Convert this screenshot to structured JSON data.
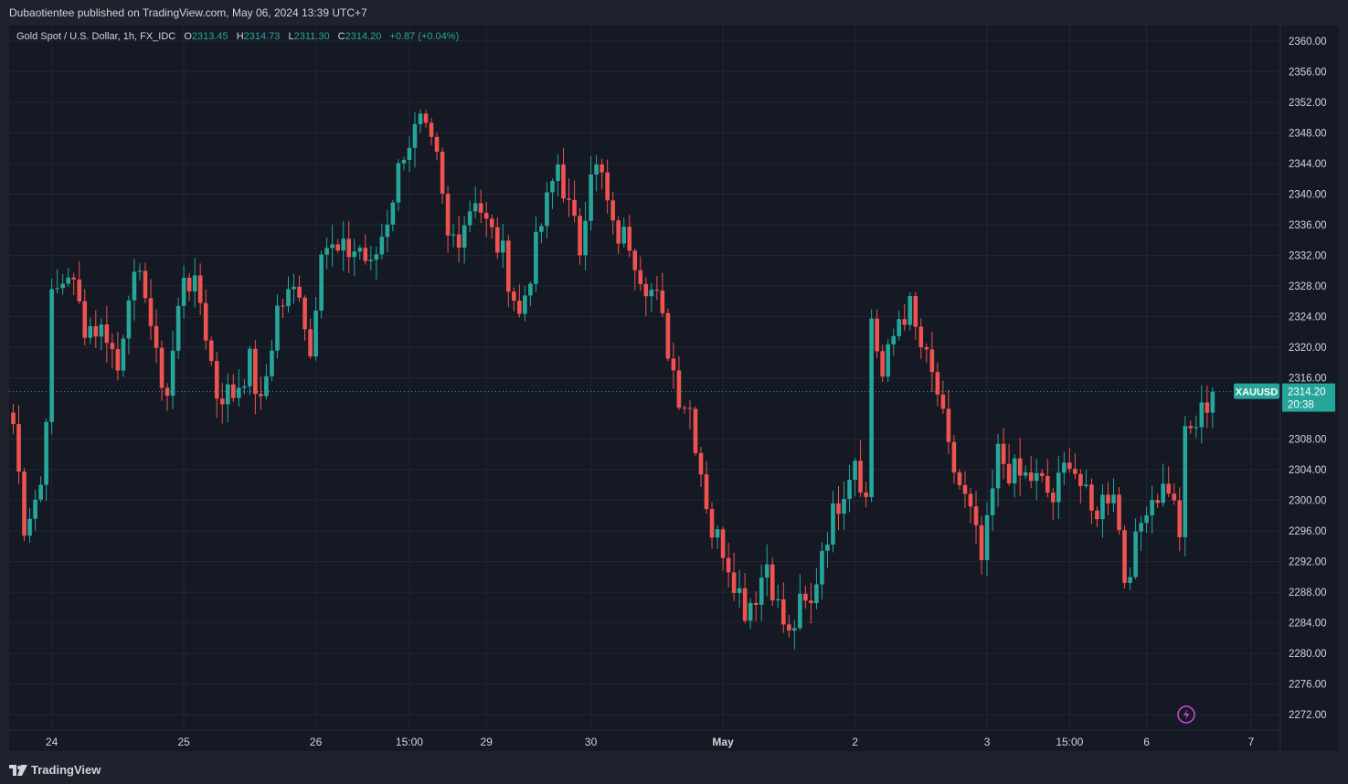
{
  "header": {
    "publisher_line": "Dubaotientee published on TradingView.com, May 06, 2024 13:39 UTC+7"
  },
  "legend": {
    "symbol_desc": "Gold Spot / U.S. Dollar, 1h, FX_IDC",
    "open_label": "O",
    "open": "2313.45",
    "high_label": "H",
    "high": "2314.73",
    "low_label": "L",
    "low": "2311.30",
    "close_label": "C",
    "close": "2314.20",
    "change": "+0.87 (+0.04%)"
  },
  "price_badge": {
    "symbol": "XAUUSD",
    "price": "2314.20",
    "countdown": "20:38"
  },
  "footer": {
    "brand": "TradingView"
  },
  "colors": {
    "up": "#26a69a",
    "down": "#ef5350",
    "grid": "#232632",
    "plot_bg": "#151924",
    "page_bg": "#1e222d",
    "text": "#d1d4dc",
    "lightning": "#c34ad6"
  },
  "chart_data": {
    "type": "candlestick",
    "timeframe": "1h",
    "yaxis": {
      "min": 2270,
      "max": 2362,
      "ticks": [
        2360,
        2356,
        2352,
        2348,
        2344,
        2340,
        2336,
        2332,
        2328,
        2324,
        2320,
        2316,
        2308,
        2304,
        2300,
        2296,
        2292,
        2288,
        2284,
        2280,
        2276,
        2272
      ]
    },
    "xaxis": {
      "labels": [
        {
          "label": "24",
          "idx": 7
        },
        {
          "label": "25",
          "idx": 31
        },
        {
          "label": "26",
          "idx": 55
        },
        {
          "label": "15:00",
          "idx": 72
        },
        {
          "label": "29",
          "idx": 86
        },
        {
          "label": "30",
          "idx": 105
        },
        {
          "label": "May",
          "idx": 129
        },
        {
          "label": "2",
          "idx": 153
        },
        {
          "label": "3",
          "idx": 177
        },
        {
          "label": "15:00",
          "idx": 192
        },
        {
          "label": "6",
          "idx": 206
        },
        {
          "label": "7",
          "idx": 225
        }
      ]
    },
    "current_price": 2314.2,
    "keypoints": [
      [
        0,
        2310
      ],
      [
        2,
        2297
      ],
      [
        5,
        2302
      ],
      [
        6,
        2312
      ],
      [
        7,
        2326
      ],
      [
        10,
        2330
      ],
      [
        13,
        2323
      ],
      [
        17,
        2322
      ],
      [
        19,
        2317
      ],
      [
        21,
        2328
      ],
      [
        24,
        2328
      ],
      [
        26,
        2318
      ],
      [
        28,
        2314
      ],
      [
        31,
        2330
      ],
      [
        34,
        2326
      ],
      [
        37,
        2314
      ],
      [
        40,
        2314
      ],
      [
        43,
        2318
      ],
      [
        45,
        2312
      ],
      [
        48,
        2325
      ],
      [
        52,
        2328
      ],
      [
        54,
        2319
      ],
      [
        56,
        2334
      ],
      [
        59,
        2332
      ],
      [
        63,
        2333
      ],
      [
        65,
        2330
      ],
      [
        68,
        2337
      ],
      [
        71,
        2346
      ],
      [
        74,
        2349
      ],
      [
        77,
        2344
      ],
      [
        79,
        2334
      ],
      [
        81,
        2335
      ],
      [
        84,
        2340
      ],
      [
        86,
        2336
      ],
      [
        89,
        2332
      ],
      [
        92,
        2324
      ],
      [
        94,
        2330
      ],
      [
        96,
        2336
      ],
      [
        99,
        2344
      ],
      [
        101,
        2338
      ],
      [
        103,
        2333
      ],
      [
        105,
        2344
      ],
      [
        107,
        2342
      ],
      [
        109,
        2335
      ],
      [
        112,
        2334
      ],
      [
        114,
        2330
      ],
      [
        117,
        2326
      ],
      [
        119,
        2320
      ],
      [
        121,
        2314
      ],
      [
        123,
        2312
      ],
      [
        125,
        2304
      ],
      [
        127,
        2296
      ],
      [
        129,
        2294
      ],
      [
        131,
        2290
      ],
      [
        133,
        2286
      ],
      [
        135,
        2288
      ],
      [
        137,
        2292
      ],
      [
        139,
        2286
      ],
      [
        141,
        2282
      ],
      [
        143,
        2286
      ],
      [
        145,
        2286
      ],
      [
        147,
        2294
      ],
      [
        149,
        2298
      ],
      [
        151,
        2302
      ],
      [
        153,
        2306
      ],
      [
        155,
        2300
      ],
      [
        156,
        2324
      ],
      [
        158,
        2316
      ],
      [
        161,
        2324
      ],
      [
        163,
        2325
      ],
      [
        164,
        2322
      ],
      [
        166,
        2318
      ],
      [
        168,
        2314
      ],
      [
        170,
        2306
      ],
      [
        172,
        2302
      ],
      [
        174,
        2298
      ],
      [
        176,
        2292
      ],
      [
        177,
        2296
      ],
      [
        179,
        2306
      ],
      [
        181,
        2304
      ],
      [
        183,
        2303
      ],
      [
        185,
        2303
      ],
      [
        187,
        2302
      ],
      [
        189,
        2300
      ],
      [
        192,
        2306
      ],
      [
        194,
        2302
      ],
      [
        196,
        2298
      ],
      [
        198,
        2300
      ],
      [
        200,
        2302
      ],
      [
        202,
        2290
      ],
      [
        204,
        2294
      ],
      [
        206,
        2300
      ],
      [
        208,
        2301
      ],
      [
        210,
        2302
      ],
      [
        212,
        2296
      ],
      [
        213,
        2308
      ],
      [
        215,
        2310
      ],
      [
        218,
        2314.2
      ]
    ]
  }
}
